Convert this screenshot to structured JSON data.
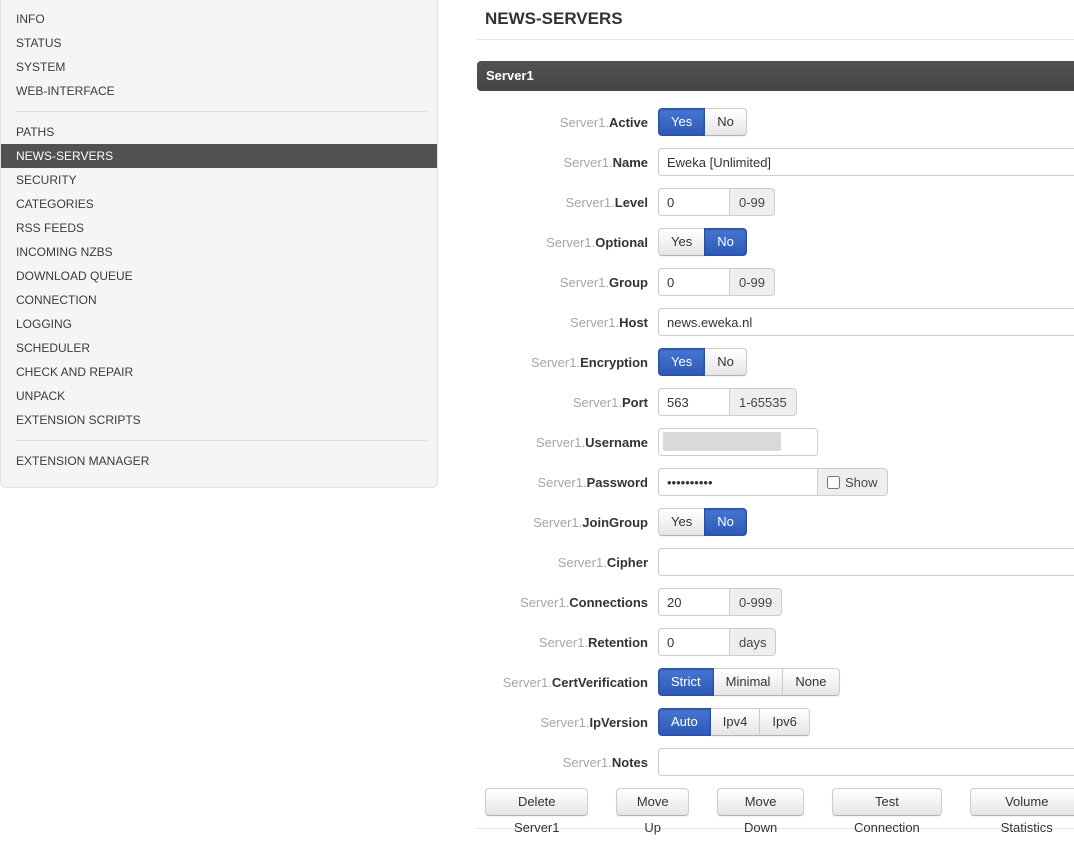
{
  "sidebar": {
    "items": [
      "INFO",
      "STATUS",
      "SYSTEM",
      "WEB-INTERFACE",
      "PATHS",
      "NEWS-SERVERS",
      "SECURITY",
      "CATEGORIES",
      "RSS FEEDS",
      "INCOMING NZBS",
      "DOWNLOAD QUEUE",
      "CONNECTION",
      "LOGGING",
      "SCHEDULER",
      "CHECK AND REPAIR",
      "UNPACK",
      "EXTENSION SCRIPTS",
      "EXTENSION MANAGER"
    ],
    "active_item": "NEWS-SERVERS"
  },
  "main": {
    "title": "NEWS-SERVERS",
    "server_section": "Server1",
    "label_prefix": "Server1.",
    "rows": {
      "active": {
        "label": "Active",
        "options": [
          "Yes",
          "No"
        ],
        "selected": "Yes"
      },
      "name": {
        "label": "Name",
        "value": "Eweka [Unlimited]"
      },
      "level": {
        "label": "Level",
        "value": "0",
        "addon": "0-99"
      },
      "optional": {
        "label": "Optional",
        "options": [
          "Yes",
          "No"
        ],
        "selected": "No"
      },
      "group": {
        "label": "Group",
        "value": "0",
        "addon": "0-99"
      },
      "host": {
        "label": "Host",
        "value": "news.eweka.nl"
      },
      "encryption": {
        "label": "Encryption",
        "options": [
          "Yes",
          "No"
        ],
        "selected": "Yes"
      },
      "port": {
        "label": "Port",
        "value": "563",
        "addon": "1-65535"
      },
      "username": {
        "label": "Username",
        "value": "",
        "redacted": true
      },
      "password": {
        "label": "Password",
        "value": "••••••••••",
        "show_label": "Show",
        "show_checked": false
      },
      "joingroup": {
        "label": "JoinGroup",
        "options": [
          "Yes",
          "No"
        ],
        "selected": "No"
      },
      "cipher": {
        "label": "Cipher",
        "value": ""
      },
      "connections": {
        "label": "Connections",
        "value": "20",
        "addon": "0-999"
      },
      "retention": {
        "label": "Retention",
        "value": "0",
        "addon": "days"
      },
      "certverification": {
        "label": "CertVerification",
        "options": [
          "Strict",
          "Minimal",
          "None"
        ],
        "selected": "Strict"
      },
      "ipversion": {
        "label": "IpVersion",
        "options": [
          "Auto",
          "Ipv4",
          "Ipv6"
        ],
        "selected": "Auto"
      },
      "notes": {
        "label": "Notes",
        "value": ""
      }
    },
    "footer_buttons": {
      "delete": "Delete Server1",
      "move_up": "Move Up",
      "move_down": "Move Down",
      "test_connection": "Test Connection",
      "volume_statistics": "Volume Statistics"
    }
  },
  "colors": {
    "accent_blue": "#3a68c8",
    "section_header_bg": "#4a4a4c",
    "sidebar_active_bg": "#515151",
    "sidebar_bg": "#f5f5f7",
    "addon_bg": "#eeeeee",
    "input_border": "#cccccc",
    "redacted_gray": "#d9d9d9"
  }
}
